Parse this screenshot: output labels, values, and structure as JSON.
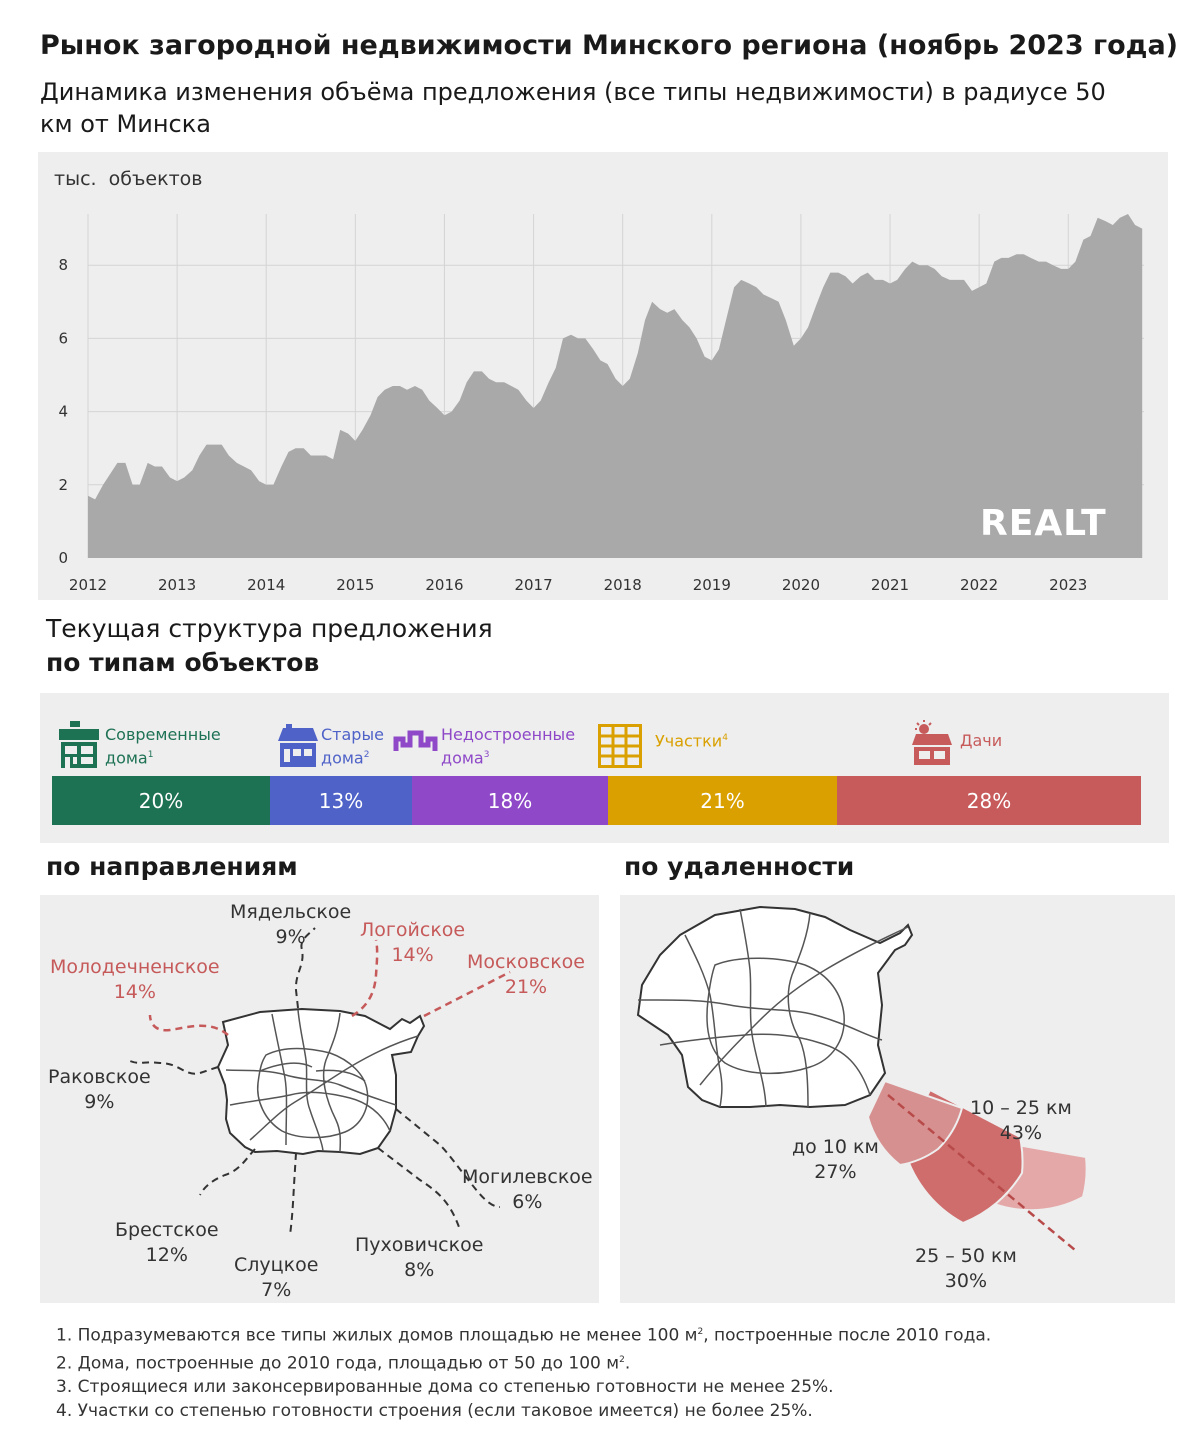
{
  "title": "Рынок загородной недвижимости Минского региона (ноябрь 2023 года)",
  "subtitle": "Динамика изменения объёма предложения (все типы недвижимости) в радиусе 50 км от Минска",
  "logo_text": "REALT",
  "colors": {
    "area_fill": "#a9a9a9",
    "panel_bg": "#eeeeee",
    "accent_red": "#c65a5a",
    "modern": "#1e7254",
    "old": "#4f62c8",
    "unfinished": "#8e48c8",
    "plots": "#d9a000",
    "dachas": "#c75b5b"
  },
  "chart_data": [
    {
      "type": "area",
      "title": "",
      "ylabel": "тыс.  объектов",
      "xlabel": "",
      "x_ticks": [
        "2012",
        "2013",
        "2014",
        "2015",
        "2016",
        "2017",
        "2018",
        "2019",
        "2020",
        "2021",
        "2022",
        "2023"
      ],
      "y_ticks": [
        0,
        2,
        4,
        6,
        8
      ],
      "ylim": [
        0,
        9.4
      ],
      "xlim": [
        2012.0,
        2023.85
      ],
      "grid": true,
      "series": [
        {
          "values": [
            [
              2012.0,
              1.7
            ],
            [
              2012.08,
              1.6
            ],
            [
              2012.17,
              2.0
            ],
            [
              2012.25,
              2.3
            ],
            [
              2012.33,
              2.6
            ],
            [
              2012.42,
              2.6
            ],
            [
              2012.5,
              2.0
            ],
            [
              2012.58,
              2.0
            ],
            [
              2012.67,
              2.6
            ],
            [
              2012.75,
              2.5
            ],
            [
              2012.83,
              2.5
            ],
            [
              2012.92,
              2.2
            ],
            [
              2013.0,
              2.1
            ],
            [
              2013.08,
              2.2
            ],
            [
              2013.17,
              2.4
            ],
            [
              2013.25,
              2.8
            ],
            [
              2013.33,
              3.1
            ],
            [
              2013.42,
              3.1
            ],
            [
              2013.5,
              3.1
            ],
            [
              2013.58,
              2.8
            ],
            [
              2013.67,
              2.6
            ],
            [
              2013.75,
              2.5
            ],
            [
              2013.83,
              2.4
            ],
            [
              2013.92,
              2.1
            ],
            [
              2014.0,
              2.0
            ],
            [
              2014.08,
              2.0
            ],
            [
              2014.17,
              2.5
            ],
            [
              2014.25,
              2.9
            ],
            [
              2014.33,
              3.0
            ],
            [
              2014.42,
              3.0
            ],
            [
              2014.5,
              2.8
            ],
            [
              2014.58,
              2.8
            ],
            [
              2014.67,
              2.8
            ],
            [
              2014.75,
              2.7
            ],
            [
              2014.83,
              3.5
            ],
            [
              2014.92,
              3.4
            ],
            [
              2015.0,
              3.2
            ],
            [
              2015.08,
              3.5
            ],
            [
              2015.17,
              3.9
            ],
            [
              2015.25,
              4.4
            ],
            [
              2015.33,
              4.6
            ],
            [
              2015.42,
              4.7
            ],
            [
              2015.5,
              4.7
            ],
            [
              2015.58,
              4.6
            ],
            [
              2015.67,
              4.7
            ],
            [
              2015.75,
              4.6
            ],
            [
              2015.83,
              4.3
            ],
            [
              2015.92,
              4.1
            ],
            [
              2016.0,
              3.9
            ],
            [
              2016.08,
              4.0
            ],
            [
              2016.17,
              4.3
            ],
            [
              2016.25,
              4.8
            ],
            [
              2016.33,
              5.1
            ],
            [
              2016.42,
              5.1
            ],
            [
              2016.5,
              4.9
            ],
            [
              2016.58,
              4.8
            ],
            [
              2016.67,
              4.8
            ],
            [
              2016.75,
              4.7
            ],
            [
              2016.83,
              4.6
            ],
            [
              2016.92,
              4.3
            ],
            [
              2017.0,
              4.1
            ],
            [
              2017.08,
              4.3
            ],
            [
              2017.17,
              4.8
            ],
            [
              2017.25,
              5.2
            ],
            [
              2017.33,
              6.0
            ],
            [
              2017.42,
              6.1
            ],
            [
              2017.5,
              6.0
            ],
            [
              2017.58,
              6.0
            ],
            [
              2017.67,
              5.7
            ],
            [
              2017.75,
              5.4
            ],
            [
              2017.83,
              5.3
            ],
            [
              2017.92,
              4.9
            ],
            [
              2018.0,
              4.7
            ],
            [
              2018.08,
              4.9
            ],
            [
              2018.17,
              5.6
            ],
            [
              2018.25,
              6.5
            ],
            [
              2018.33,
              7.0
            ],
            [
              2018.42,
              6.8
            ],
            [
              2018.5,
              6.7
            ],
            [
              2018.58,
              6.8
            ],
            [
              2018.67,
              6.5
            ],
            [
              2018.75,
              6.3
            ],
            [
              2018.83,
              6.0
            ],
            [
              2018.92,
              5.5
            ],
            [
              2019.0,
              5.4
            ],
            [
              2019.08,
              5.7
            ],
            [
              2019.17,
              6.6
            ],
            [
              2019.25,
              7.4
            ],
            [
              2019.33,
              7.6
            ],
            [
              2019.42,
              7.5
            ],
            [
              2019.5,
              7.4
            ],
            [
              2019.58,
              7.2
            ],
            [
              2019.67,
              7.1
            ],
            [
              2019.75,
              7.0
            ],
            [
              2019.83,
              6.5
            ],
            [
              2019.92,
              5.8
            ],
            [
              2020.0,
              6.0
            ],
            [
              2020.08,
              6.3
            ],
            [
              2020.17,
              6.9
            ],
            [
              2020.25,
              7.4
            ],
            [
              2020.33,
              7.8
            ],
            [
              2020.42,
              7.8
            ],
            [
              2020.5,
              7.7
            ],
            [
              2020.58,
              7.5
            ],
            [
              2020.67,
              7.7
            ],
            [
              2020.75,
              7.8
            ],
            [
              2020.83,
              7.6
            ],
            [
              2020.92,
              7.6
            ],
            [
              2021.0,
              7.5
            ],
            [
              2021.08,
              7.6
            ],
            [
              2021.17,
              7.9
            ],
            [
              2021.25,
              8.1
            ],
            [
              2021.33,
              8.0
            ],
            [
              2021.42,
              8.0
            ],
            [
              2021.5,
              7.9
            ],
            [
              2021.58,
              7.7
            ],
            [
              2021.67,
              7.6
            ],
            [
              2021.75,
              7.6
            ],
            [
              2021.83,
              7.6
            ],
            [
              2021.92,
              7.3
            ],
            [
              2022.0,
              7.4
            ],
            [
              2022.08,
              7.5
            ],
            [
              2022.17,
              8.1
            ],
            [
              2022.25,
              8.2
            ],
            [
              2022.33,
              8.2
            ],
            [
              2022.42,
              8.3
            ],
            [
              2022.5,
              8.3
            ],
            [
              2022.58,
              8.2
            ],
            [
              2022.67,
              8.1
            ],
            [
              2022.75,
              8.1
            ],
            [
              2022.83,
              8.0
            ],
            [
              2022.92,
              7.9
            ],
            [
              2023.0,
              7.9
            ],
            [
              2023.08,
              8.1
            ],
            [
              2023.17,
              8.7
            ],
            [
              2023.25,
              8.8
            ],
            [
              2023.33,
              9.3
            ],
            [
              2023.42,
              9.2
            ],
            [
              2023.5,
              9.1
            ],
            [
              2023.58,
              9.3
            ],
            [
              2023.67,
              9.4
            ],
            [
              2023.75,
              9.1
            ],
            [
              2023.83,
              9.0
            ]
          ]
        }
      ]
    },
    {
      "type": "bar",
      "title": "Текущая структура предложения по типам объектов",
      "categories": [
        "Современные дома",
        "Старые дома",
        "Недостроенные дома",
        "Участки",
        "Дачи"
      ],
      "values": [
        20,
        13,
        18,
        21,
        28
      ],
      "unit": "%",
      "stacked": true
    },
    {
      "type": "bar",
      "title": "по направлениям",
      "categories": [
        "Мядельское",
        "Логойское",
        "Московское",
        "Молодечненское",
        "Раковское",
        "Могилевское",
        "Брестское",
        "Слуцкое",
        "Пуховичское"
      ],
      "values": [
        9,
        14,
        21,
        14,
        9,
        6,
        12,
        7,
        8
      ],
      "unit": "%"
    },
    {
      "type": "pie",
      "title": "по удаленности",
      "categories": [
        "до 10 км",
        "10 – 25 км",
        "25 – 50 км"
      ],
      "values": [
        27,
        43,
        30
      ],
      "unit": "%"
    }
  ],
  "structure": {
    "heading_line1": "Текущая структура предложения",
    "heading_line2": "по типам объектов",
    "types": [
      {
        "name_l1": "Современные",
        "name_l2": "дома",
        "sup": "1",
        "value": "20%",
        "share": 20,
        "icon": "modern-house-icon"
      },
      {
        "name_l1": "Старые",
        "name_l2": "дома",
        "sup": "2",
        "value": "13%",
        "share": 13,
        "icon": "old-house-icon"
      },
      {
        "name_l1": "Недостроенные",
        "name_l2": "дома",
        "sup": "3",
        "value": "18%",
        "share": 18,
        "icon": "unfinished-house-icon"
      },
      {
        "name_l1": "Участки",
        "name_l2": "",
        "sup": "4",
        "value": "21%",
        "share": 21,
        "icon": "plot-grid-icon"
      },
      {
        "name_l1": "Дачи",
        "name_l2": "",
        "sup": "",
        "value": "28%",
        "share": 28,
        "icon": "dacha-house-icon"
      }
    ]
  },
  "directions": {
    "heading": "по направлениям",
    "items": [
      {
        "name": "Мядельское",
        "value": "9%",
        "highlight": false
      },
      {
        "name": "Логойское",
        "value": "14%",
        "highlight": true
      },
      {
        "name": "Московское",
        "value": "21%",
        "highlight": true
      },
      {
        "name": "Молодечненское",
        "value": "14%",
        "highlight": true
      },
      {
        "name": "Раковское",
        "value": "9%",
        "highlight": false
      },
      {
        "name": "Могилевское",
        "value": "6%",
        "highlight": false
      },
      {
        "name": "Брестское",
        "value": "12%",
        "highlight": false
      },
      {
        "name": "Слуцкое",
        "value": "7%",
        "highlight": false
      },
      {
        "name": "Пуховичское",
        "value": "8%",
        "highlight": false
      }
    ]
  },
  "distance": {
    "heading": "по удаленности",
    "items": [
      {
        "name": "до 10 км",
        "value": "27%"
      },
      {
        "name": "10 – 25 км",
        "value": "43%"
      },
      {
        "name": "25 – 50 км",
        "value": "30%"
      }
    ]
  },
  "footnotes": [
    {
      "text": "1. Подразумеваются все типы жилых домов площадью не менее 100 м",
      "sup": "2",
      "tail": ", построенные после 2010 года."
    },
    {
      "text": "2. Дома, построенные до 2010 года, площадью от 50 до 100 м",
      "sup": "2",
      "tail": "."
    },
    {
      "text": "3. Строящиеся или законсервированные дома со степенью готовности не менее 25%.",
      "sup": "",
      "tail": ""
    },
    {
      "text": "4. Участки со степенью готовности строения (если таковое имеется) не более 25%.",
      "sup": "",
      "tail": ""
    }
  ]
}
